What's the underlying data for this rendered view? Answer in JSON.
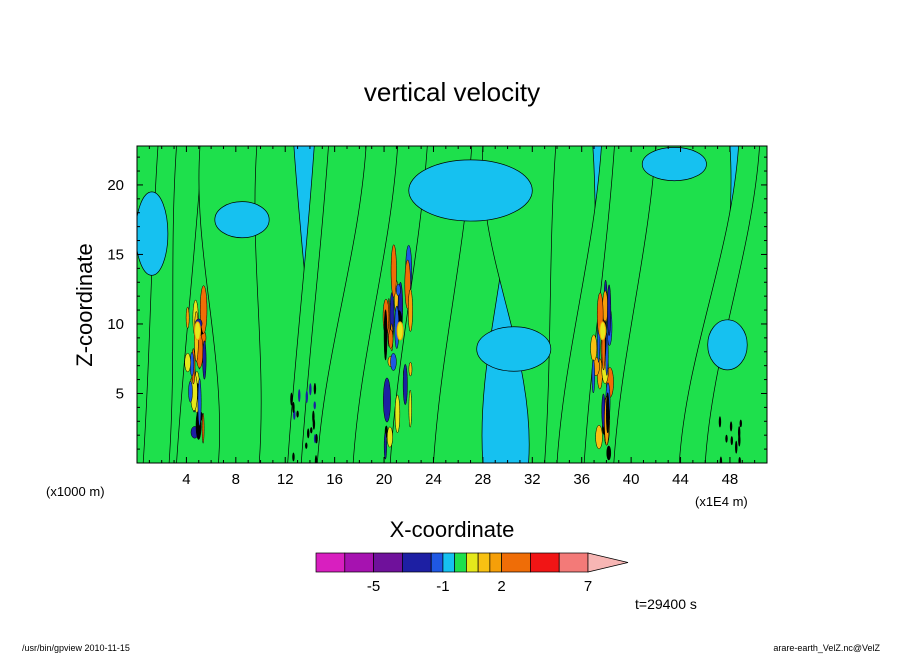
{
  "chart_data": {
    "type": "heatmap",
    "title": "vertical velocity",
    "xlabel": "X-coordinate",
    "ylabel": "Z-coordinate",
    "x_unit_left": "(x1000 m)",
    "x_unit_right": "(x1E4 m)",
    "xlim": [
      0,
      51
    ],
    "ylim": [
      0,
      22.8
    ],
    "x_ticks": [
      "4",
      "8",
      "12",
      "16",
      "20",
      "24",
      "28",
      "32",
      "36",
      "40",
      "44",
      "48"
    ],
    "x_tick_values": [
      4,
      8,
      12,
      16,
      20,
      24,
      28,
      32,
      36,
      40,
      44,
      48
    ],
    "y_ticks": [
      "5",
      "10",
      "15",
      "20"
    ],
    "y_tick_values": [
      5,
      10,
      15,
      20
    ],
    "colorbar": {
      "labels": [
        "-5",
        "-1",
        "2",
        "7"
      ],
      "label_levels": [
        -5,
        -1,
        2,
        7
      ],
      "levels": [
        -10,
        -7.5,
        -5,
        -3,
        -2,
        -1,
        -0.5,
        0,
        0.5,
        1,
        2,
        3,
        5,
        7,
        10
      ],
      "colors": [
        "#d81fbf",
        "#a612b0",
        "#6f119b",
        "#1d1fa3",
        "#1f58e3",
        "#16c1f0",
        "#1ee04c",
        "#e5e81b",
        "#f8c112",
        "#f59f09",
        "#ef6d07",
        "#f11515",
        "#f37a78",
        "#f7b6b4"
      ],
      "extend": "max"
    },
    "convective_columns_x": [
      4.8,
      21.2,
      37.6
    ],
    "updraft_peak_z": 9.5,
    "time_label": "t=29400 s",
    "grid": false
  },
  "footer": {
    "left": "/usr/bin/gpview   2010-11-15",
    "right": "arare-earth_VelZ.nc@VelZ"
  }
}
